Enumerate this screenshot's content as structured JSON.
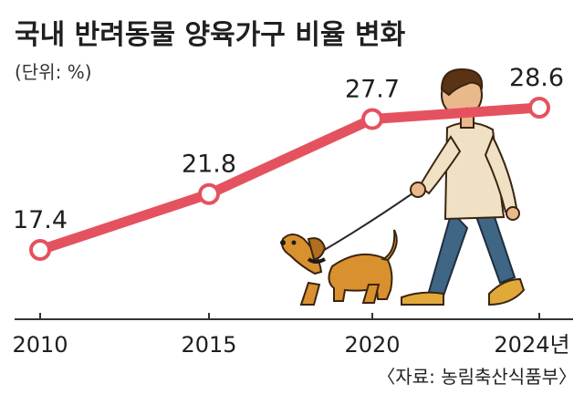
{
  "title": "국내 반려동물 양육가구 비율 변화",
  "unit_label": "(단위: %)",
  "source": "〈자료: 농림축산식품부〉",
  "colors": {
    "line": "#e5525f",
    "marker_fill": "#ffffff",
    "axis": "#333333"
  },
  "chart_data": {
    "type": "line",
    "categories": [
      "2010",
      "2015",
      "2020",
      "2024년"
    ],
    "series": [
      {
        "values": [
          17.4,
          21.8,
          27.7,
          28.6
        ]
      }
    ],
    "data_labels": [
      "17.4",
      "21.8",
      "27.7",
      "28.6"
    ],
    "xlabel": "",
    "ylabel": "",
    "grid": false,
    "legend": "none"
  }
}
